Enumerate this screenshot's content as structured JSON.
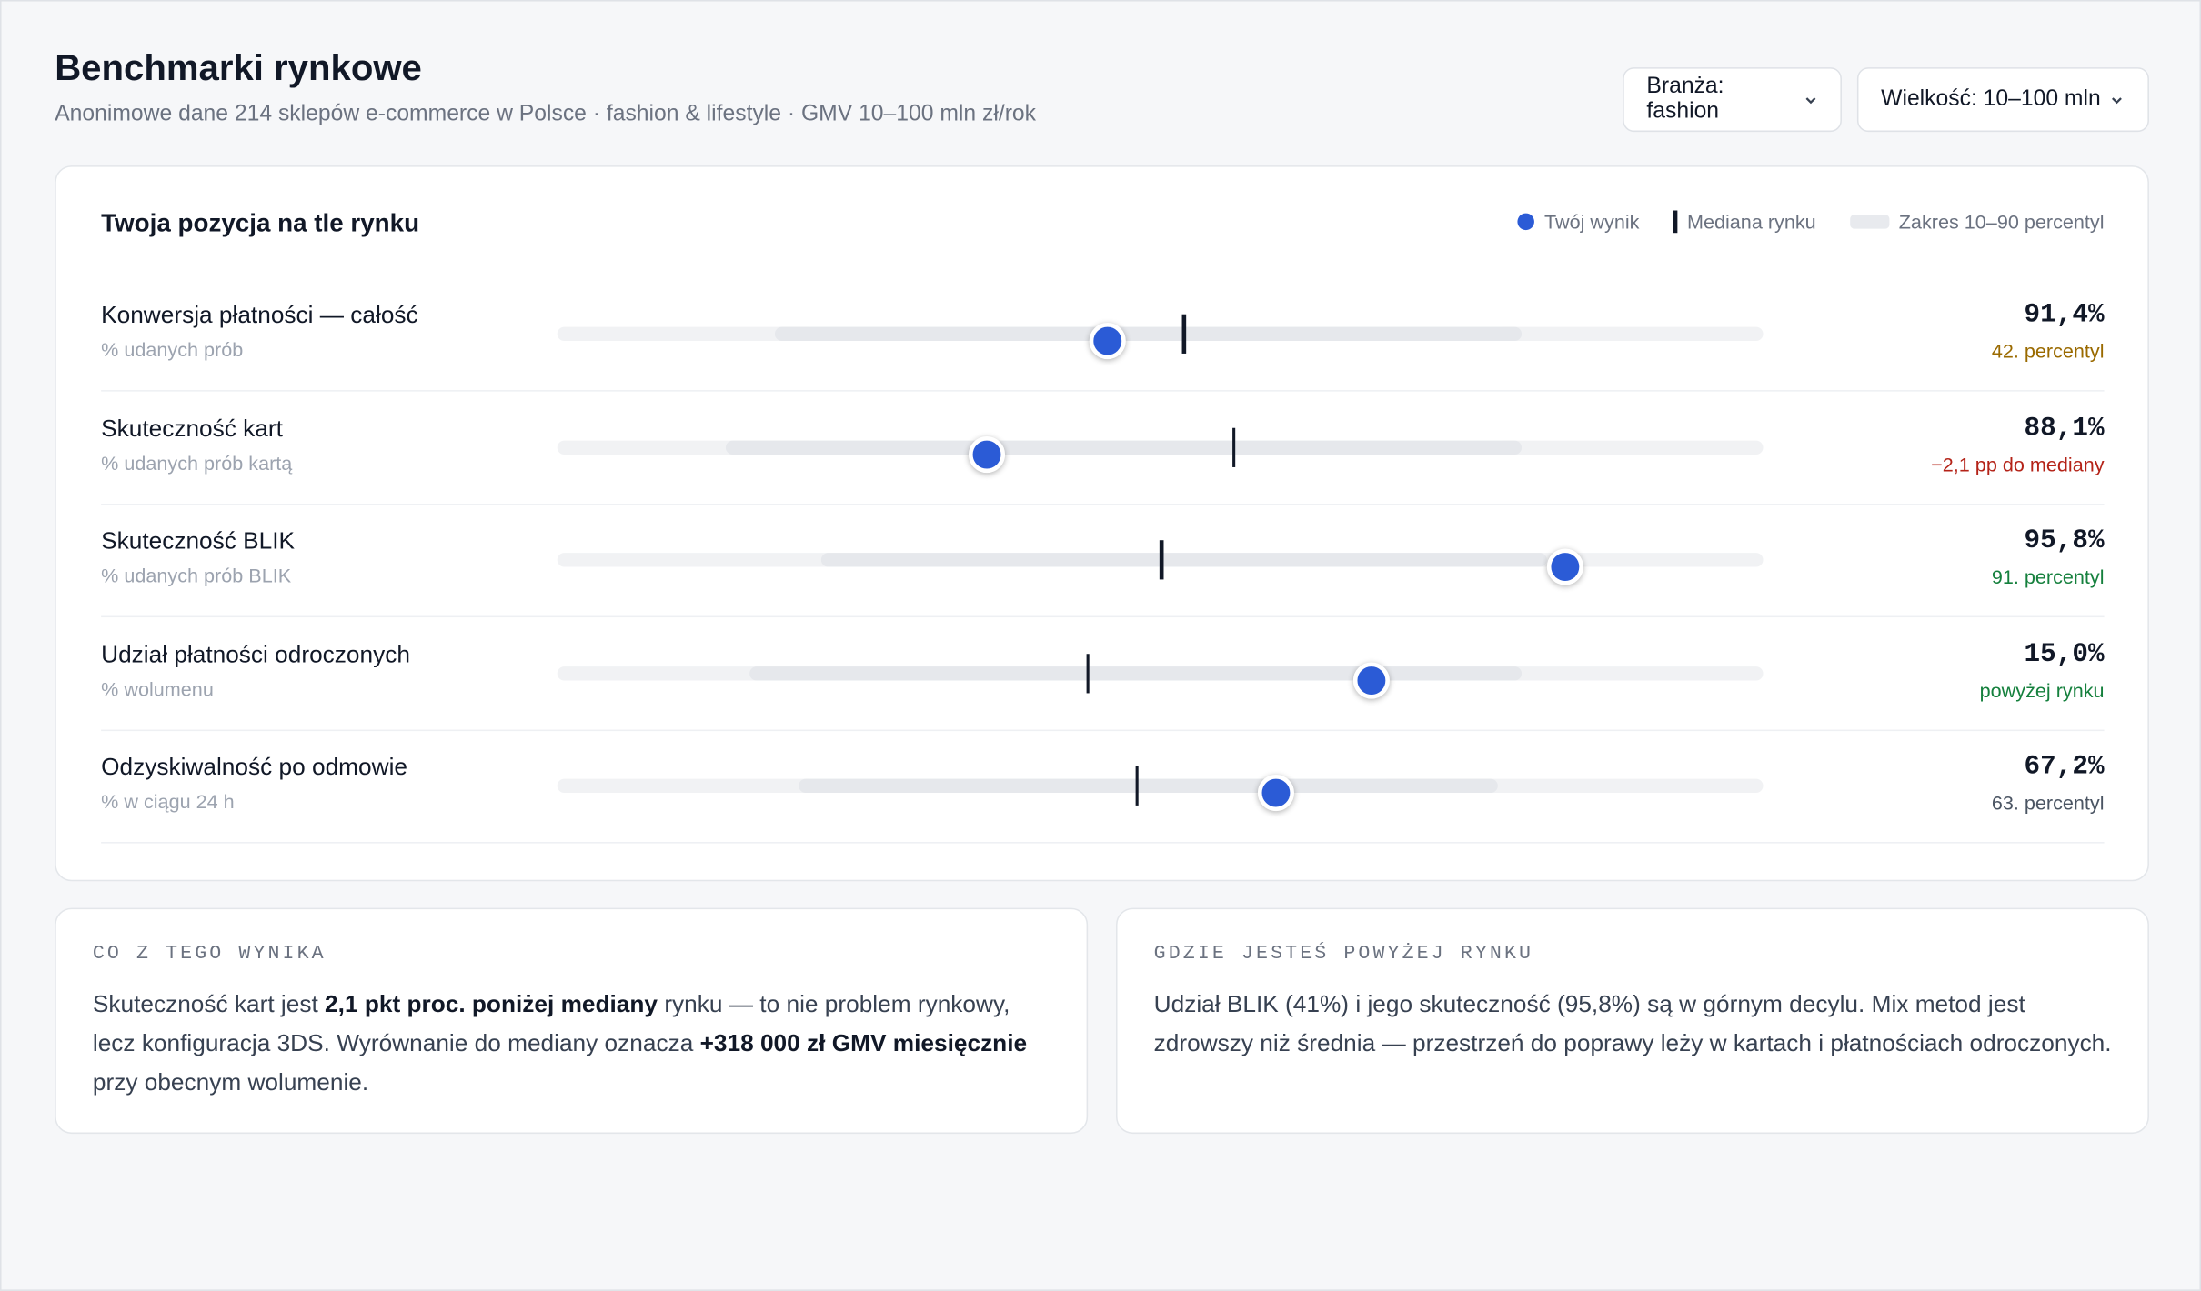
{
  "header": {
    "title": "Benchmarki rynkowe",
    "subtitle": "Anonimowe dane 214 sklepów e-commerce w Polsce · fashion & lifestyle · GMV 10–100 mln zł/rok"
  },
  "filters": [
    "Branża: fashion",
    "Wielkość: 10–100 mln"
  ],
  "card": {
    "title": "Twoja pozycja na tle rynku",
    "legend": [
      "Twój wynik",
      "Mediana rynku",
      "Zakres 10–90 percentyl"
    ],
    "marker_color": "#2b5bd6"
  },
  "rows": [
    {
      "name": "Konwersja płatności — całość",
      "unit": "% udanych prób",
      "range": [
        18,
        80
      ],
      "median": 52,
      "marker": 45.6,
      "value": "91,4%",
      "note": "42. percentyl",
      "note_color": "#9a6a00"
    },
    {
      "name": "Skuteczność kart",
      "unit": "% udanych prób kartą",
      "range": [
        14,
        80
      ],
      "median": 56.1,
      "marker": 35.6,
      "value": "88,1%",
      "note": "−2,1 pp do mediany",
      "note_color": "#b42318"
    },
    {
      "name": "Skuteczność BLIK",
      "unit": "% udanych prób BLIK",
      "range": [
        21.9,
        82.1
      ],
      "median": 50.1,
      "marker": 83.6,
      "value": "95,8%",
      "note": "91. percentyl",
      "note_color": "#15803d"
    },
    {
      "name": "Udział płatności odroczonych",
      "unit": "% wolumenu",
      "range": [
        15.9,
        80
      ],
      "median": 44,
      "marker": 67.5,
      "value": "15,0%",
      "note": "powyżej rynku",
      "note_color": "#15803d"
    },
    {
      "name": "Odzyskiwalność po odmowie",
      "unit": "% w ciągu 24 h",
      "range": [
        20,
        78
      ],
      "median": 48.1,
      "marker": 59.6,
      "value": "67,2%",
      "note": "63. percentyl",
      "note_color": "#4b5563"
    }
  ],
  "insights": [
    {
      "heading": "CO Z TEGO WYNIKA",
      "segments": [
        {
          "text": "Skuteczność kart jest ",
          "bold": false
        },
        {
          "text": "2,1 pkt proc. poniżej mediany",
          "bold": true
        },
        {
          "text": " rynku — to nie problem rynkowy, lecz konfiguracja 3DS. Wyrównanie do mediany oznacza ",
          "bold": false
        },
        {
          "text": "+318 000 zł GMV miesięcznie",
          "bold": true
        },
        {
          "text": " przy obecnym wolumenie.",
          "bold": false
        }
      ]
    },
    {
      "heading": "GDZIE JESTEŚ POWYŻEJ RYNKU",
      "segments": [
        {
          "text": "Udział BLIK (41%) i jego skuteczność (95,8%) są w górnym decylu. Mix metod jest zdrowszy niż średnia — przestrzeń do poprawy leży w kartach i płatnościach odroczonych.",
          "bold": false
        }
      ]
    }
  ]
}
